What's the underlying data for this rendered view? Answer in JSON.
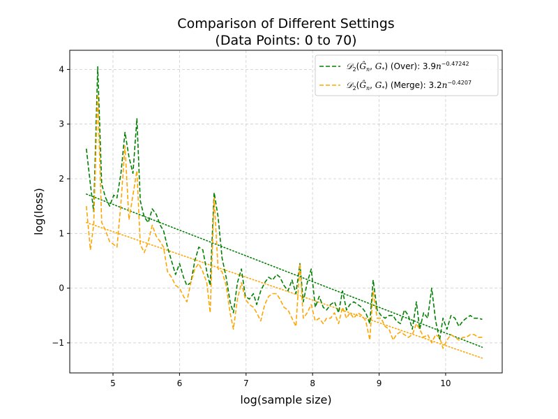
{
  "chart_data": {
    "type": "line",
    "title_line1": "Comparison of Different Settings",
    "title_line2": "(Data Points: 0 to 70)",
    "xlabel": "log(sample size)",
    "ylabel": "log(loss)",
    "xlim": [
      4.35,
      10.85
    ],
    "ylim": [
      -1.55,
      4.35
    ],
    "x_ticks": [
      5,
      6,
      7,
      8,
      9,
      10
    ],
    "y_ticks": [
      -1,
      0,
      1,
      2,
      3,
      4
    ],
    "x_tick_labels": [
      "5",
      "6",
      "7",
      "8",
      "9",
      "10"
    ],
    "y_tick_labels": [
      "−1",
      "0",
      "1",
      "2",
      "3",
      "4"
    ],
    "grid": true,
    "legend_position": "top-right",
    "x": [
      4.6,
      4.66,
      4.71,
      4.77,
      4.83,
      4.89,
      4.95,
      5.01,
      5.06,
      5.12,
      5.18,
      5.24,
      5.3,
      5.36,
      5.41,
      5.47,
      5.53,
      5.59,
      5.65,
      5.71,
      5.76,
      5.82,
      5.88,
      5.94,
      6.0,
      6.06,
      6.11,
      6.17,
      6.23,
      6.29,
      6.35,
      6.41,
      6.46,
      6.52,
      6.58,
      6.64,
      6.7,
      6.76,
      6.81,
      6.87,
      6.93,
      6.99,
      7.05,
      7.11,
      7.16,
      7.22,
      7.28,
      7.34,
      7.4,
      7.46,
      7.51,
      7.57,
      7.63,
      7.69,
      7.75,
      7.81,
      7.86,
      7.92,
      7.98,
      8.04,
      8.1,
      8.16,
      8.21,
      8.27,
      8.33,
      8.39,
      8.45,
      8.51,
      8.56,
      8.62,
      8.68,
      8.74,
      8.8,
      8.86,
      8.91,
      8.97,
      9.03,
      9.09,
      9.15,
      9.21,
      9.26,
      9.32,
      9.38,
      9.44,
      9.5,
      9.56,
      9.61,
      9.67,
      9.73,
      9.79,
      9.85,
      9.91,
      9.96,
      10.02,
      10.08,
      10.14,
      10.2,
      10.26,
      10.31,
      10.37,
      10.43,
      10.49,
      10.55
    ],
    "series": [
      {
        "name": "(Over): 3.9",
        "legend_exponent": "−0.47242",
        "color": "#008000",
        "dash": "dashed",
        "values": [
          2.55,
          1.9,
          1.4,
          4.05,
          1.9,
          1.65,
          1.5,
          1.7,
          1.65,
          2.1,
          2.85,
          2.4,
          2.1,
          3.1,
          1.6,
          1.3,
          1.2,
          1.45,
          1.35,
          1.15,
          1.05,
          0.75,
          0.5,
          0.25,
          0.45,
          0.2,
          0.05,
          0.1,
          0.5,
          0.75,
          0.7,
          0.3,
          0.05,
          1.75,
          1.3,
          0.55,
          0.2,
          -0.25,
          -0.45,
          0.1,
          0.35,
          -0.15,
          -0.2,
          -0.1,
          -0.3,
          -0.05,
          0.1,
          0.2,
          0.15,
          0.25,
          0.2,
          0.05,
          -0.05,
          0.15,
          -0.1,
          0.45,
          -0.25,
          0.1,
          0.35,
          -0.35,
          -0.15,
          -0.35,
          -0.4,
          -0.3,
          -0.25,
          -0.45,
          -0.05,
          -0.4,
          -0.3,
          -0.25,
          -0.3,
          -0.35,
          -0.45,
          -0.65,
          0.15,
          -0.4,
          -0.5,
          -0.55,
          -0.5,
          -0.5,
          -0.6,
          -0.65,
          -0.4,
          -0.5,
          -0.75,
          -0.25,
          -0.75,
          -0.45,
          -0.55,
          0.0,
          -0.6,
          -0.95,
          -0.55,
          -0.75,
          -0.5,
          -0.55,
          -0.7,
          -0.6,
          -0.55,
          -0.5,
          -0.55,
          -0.55,
          -0.57
        ]
      },
      {
        "name": "(Merge): 3.2",
        "legend_exponent": "−0.4207",
        "color": "#FFA500",
        "dash": "dashed",
        "values": [
          1.5,
          0.7,
          1.15,
          3.55,
          1.2,
          1.05,
          0.85,
          0.8,
          0.75,
          1.55,
          2.6,
          1.25,
          1.7,
          2.15,
          0.8,
          0.65,
          0.85,
          1.15,
          0.95,
          0.85,
          0.75,
          0.3,
          0.2,
          0.05,
          0.0,
          -0.15,
          -0.25,
          0.1,
          0.35,
          0.45,
          0.3,
          0.1,
          -0.45,
          1.65,
          0.35,
          0.3,
          0.05,
          -0.45,
          -0.75,
          -0.2,
          0.1,
          -0.2,
          -0.3,
          -0.35,
          -0.45,
          -0.6,
          -0.3,
          -0.15,
          -0.1,
          -0.1,
          -0.2,
          -0.35,
          -0.4,
          -0.55,
          -0.7,
          0.45,
          -0.55,
          -0.45,
          -0.3,
          -0.6,
          -0.55,
          -0.65,
          -0.55,
          -0.55,
          -0.45,
          -0.65,
          -0.35,
          -0.55,
          -0.45,
          -0.55,
          -0.45,
          -0.5,
          -0.6,
          -0.95,
          -0.05,
          -0.55,
          -0.55,
          -0.7,
          -0.75,
          -0.95,
          -0.85,
          -0.8,
          -0.85,
          -0.9,
          -0.85,
          -0.65,
          -0.75,
          -0.9,
          -0.85,
          -1.0,
          -0.85,
          -0.9,
          -1.1,
          -0.95,
          -0.85,
          -0.9,
          -0.95,
          -0.9,
          -0.9,
          -0.85,
          -0.85,
          -0.9,
          -0.9
        ]
      }
    ],
    "trend_lines": [
      {
        "color": "#008000",
        "style": "dotted",
        "x": [
          4.6,
          10.55
        ],
        "y": [
          1.72,
          -1.08
        ]
      },
      {
        "color": "#FFA500",
        "style": "dotted",
        "x": [
          4.6,
          10.55
        ],
        "y": [
          1.2,
          -1.28
        ]
      }
    ]
  }
}
